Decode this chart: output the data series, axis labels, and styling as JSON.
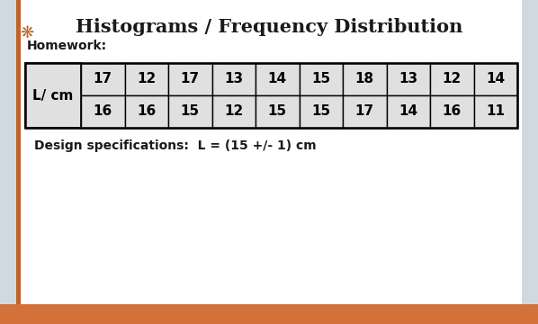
{
  "title": "Histograms / Frequency Distribution",
  "subtitle": "Homework:",
  "row1": [
    17,
    12,
    17,
    13,
    14,
    15,
    18,
    13,
    12,
    14
  ],
  "row2": [
    16,
    16,
    15,
    12,
    15,
    15,
    17,
    14,
    16,
    11
  ],
  "row_label": "L/ cm",
  "design_spec": "Design specifications:  L = (15 +/- 1) cm",
  "bg_color": "#ffffff",
  "side_bg_color": "#d0d8e0",
  "title_fontsize": 15,
  "subtitle_fontsize": 10,
  "table_fontsize": 11,
  "spec_fontsize": 10,
  "bottom_bar_color": "#d4703a",
  "left_bar_color": "#c0622a",
  "table_bg": "#e0e0e0",
  "table_border_color": "#000000",
  "title_color": "#1a1a1a"
}
